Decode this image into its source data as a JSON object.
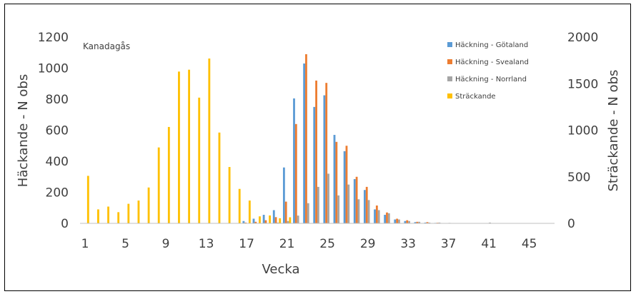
{
  "chart_data": {
    "type": "bar",
    "title": "Kanadagås",
    "xlabel": "Vecka",
    "ylabel_left": "Häckande - N obs",
    "ylabel_right": "Sträckande - N obs",
    "ylim_left": [
      0,
      1200
    ],
    "ylim_right": [
      0,
      2000
    ],
    "yticks_left": [
      "0",
      "200",
      "400",
      "600",
      "800",
      "1000",
      "1200"
    ],
    "yticks_right": [
      "0",
      "500",
      "1000",
      "1500",
      "2000"
    ],
    "x": [
      1,
      2,
      3,
      4,
      5,
      6,
      7,
      8,
      9,
      10,
      11,
      12,
      13,
      14,
      15,
      16,
      17,
      18,
      19,
      20,
      21,
      22,
      23,
      24,
      25,
      26,
      27,
      28,
      29,
      30,
      31,
      32,
      33,
      34,
      35,
      36,
      37,
      38,
      39,
      40,
      41,
      42,
      43,
      44,
      45,
      46,
      47
    ],
    "xtick_labels": [
      "1",
      "5",
      "9",
      "13",
      "17",
      "21",
      "25",
      "29",
      "33",
      "37",
      "41",
      "45"
    ],
    "series": [
      {
        "name": "Häckning - Götaland",
        "axis": "left",
        "color": "#5B9BD5",
        "values": [
          0,
          0,
          0,
          0,
          0,
          0,
          0,
          0,
          0,
          0,
          0,
          0,
          0,
          0,
          0,
          0,
          15,
          30,
          55,
          85,
          360,
          805,
          1030,
          750,
          825,
          570,
          465,
          285,
          215,
          90,
          55,
          25,
          15,
          8,
          5,
          3,
          2,
          1,
          0,
          0,
          0,
          0,
          0,
          0,
          0,
          0,
          0
        ]
      },
      {
        "name": "Häckning - Svealand",
        "axis": "left",
        "color": "#ED7D31",
        "values": [
          0,
          0,
          0,
          0,
          0,
          0,
          0,
          0,
          0,
          0,
          0,
          0,
          0,
          0,
          0,
          0,
          5,
          10,
          20,
          40,
          140,
          640,
          1090,
          920,
          905,
          525,
          500,
          300,
          235,
          115,
          70,
          30,
          20,
          10,
          8,
          4,
          2,
          1,
          0,
          0,
          0,
          0,
          0,
          0,
          0,
          0,
          0
        ]
      },
      {
        "name": "Häckning - Norrland",
        "axis": "left",
        "color": "#A5A5A5",
        "values": [
          0,
          0,
          0,
          0,
          0,
          0,
          0,
          0,
          0,
          0,
          0,
          0,
          0,
          0,
          0,
          0,
          0,
          0,
          0,
          5,
          15,
          50,
          130,
          235,
          320,
          180,
          250,
          155,
          150,
          85,
          65,
          25,
          15,
          10,
          5,
          5,
          3,
          2,
          1,
          1,
          5,
          0,
          0,
          0,
          0,
          0,
          0
        ]
      },
      {
        "name": "Sträckande",
        "axis": "right",
        "color": "#FFC000",
        "values": [
          510,
          150,
          180,
          120,
          210,
          245,
          385,
          815,
          1035,
          1630,
          1650,
          1350,
          1770,
          975,
          605,
          370,
          245,
          75,
          85,
          55,
          65,
          0,
          0,
          0,
          0,
          0,
          0,
          0,
          0,
          0,
          0,
          0,
          0,
          0,
          0,
          0,
          0,
          0,
          0,
          0,
          0,
          0,
          0,
          0,
          0,
          0,
          0
        ]
      }
    ],
    "legend_position": "top-right"
  }
}
